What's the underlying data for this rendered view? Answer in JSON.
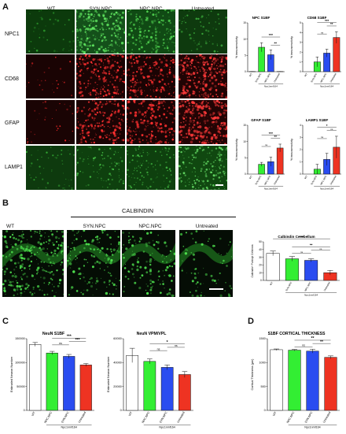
{
  "panel_a": {
    "letter": "A",
    "columns": [
      "WT",
      "SYN.NPC",
      "NPC.NPC",
      "Untreated"
    ],
    "rows": [
      "NPC1",
      "CD68",
      "GFAP",
      "LAMP1"
    ]
  },
  "panel_b": {
    "letter": "B",
    "stain": "CALBINDIN",
    "columns": [
      "WT",
      "SYN.NPC",
      "NPC.NPC",
      "Untreated"
    ]
  },
  "panel_c": {
    "letter": "C"
  },
  "panel_d": {
    "letter": "D"
  },
  "colors": {
    "wt": "#ffffff",
    "syn_npc": "#33ee33",
    "npc_npc": "#2a4cf0",
    "untreated": "#ee3322"
  },
  "chart_data": [
    {
      "id": "npc-s1bf",
      "type": "bar",
      "title": "NPC S1BF",
      "ylabel": "% immunoreactivity",
      "xgroup": "Npc1nmf164",
      "categories": [
        "WT",
        "SYN.NPC",
        "NPC.NPC",
        "Untreated"
      ],
      "values": [
        0.05,
        7.5,
        5.2,
        0.05
      ],
      "errors": [
        0.02,
        1.4,
        1.5,
        0.02
      ],
      "ylim": [
        0,
        15
      ],
      "yticks": [
        0,
        5,
        10,
        15
      ],
      "colors": [
        "#ffffff",
        "#33ee33",
        "#2a4cf0",
        "#ee3322"
      ],
      "significance": [
        [
          "***",
          1,
          3
        ],
        [
          "**",
          2,
          3
        ]
      ]
    },
    {
      "id": "cd68-s1bf",
      "type": "bar",
      "title": "CD68 S1BF",
      "ylabel": "% immunoreactivity",
      "xgroup": "Npc1nmf164",
      "categories": [
        "WT",
        "SYN.NPC",
        "NPC.NPC",
        "Untreated"
      ],
      "values": [
        0.0,
        1.0,
        1.9,
        3.5
      ],
      "errors": [
        0.0,
        0.5,
        0.4,
        0.6
      ],
      "ylim": [
        0,
        5
      ],
      "yticks": [
        0,
        1,
        2,
        3,
        4,
        5
      ],
      "colors": [
        "#ffffff",
        "#33ee33",
        "#2a4cf0",
        "#ee3322"
      ],
      "significance": [
        [
          "***",
          1,
          3
        ],
        [
          "ns",
          1,
          2
        ],
        [
          "**",
          2,
          3
        ]
      ]
    },
    {
      "id": "gfap-s1bf",
      "type": "bar",
      "title": "GFAP S1BF",
      "ylabel": "% immunoreactivity",
      "xgroup": "Npc1nmf164",
      "categories": [
        "WT",
        "SYN.NPC",
        "NPC.NPC",
        "Untreated"
      ],
      "values": [
        0.0,
        3.0,
        3.8,
        8.0
      ],
      "errors": [
        0.0,
        0.6,
        1.4,
        1.2
      ],
      "ylim": [
        0,
        15
      ],
      "yticks": [
        0,
        5,
        10,
        15
      ],
      "colors": [
        "#ffffff",
        "#33ee33",
        "#2a4cf0",
        "#ee3322"
      ],
      "significance": [
        [
          "***",
          1,
          3
        ],
        [
          "ns",
          1,
          2
        ],
        [
          "**",
          2,
          3
        ]
      ]
    },
    {
      "id": "lamp1-s1bf",
      "type": "bar",
      "title": "LAMP1 S1BF",
      "ylabel": "% immunoreactivity",
      "xgroup": "Npc1nmf164",
      "categories": [
        "WT",
        "SYN.NPC",
        "NPC.NPC",
        "Untreated"
      ],
      "values": [
        0.0,
        0.4,
        1.2,
        2.2
      ],
      "errors": [
        0.0,
        0.4,
        0.5,
        0.9
      ],
      "ylim": [
        0,
        4
      ],
      "yticks": [
        0,
        1,
        2,
        3,
        4
      ],
      "colors": [
        "#ffffff",
        "#33ee33",
        "#2a4cf0",
        "#ee3322"
      ],
      "significance": [
        [
          "*",
          1,
          3
        ],
        [
          "ns",
          1,
          2
        ],
        [
          "ns",
          2,
          3
        ]
      ]
    },
    {
      "id": "calbindin-cerebellum",
      "type": "bar",
      "title": "Calbindin Cerebellum",
      "ylabel": "Calbindin+ Purkinje Cells/mm",
      "xgroup": "Npc1nmf164",
      "categories": [
        "WT",
        "SYN.NPC",
        "NPC.NPC",
        "Untreated"
      ],
      "values": [
        35,
        28,
        26,
        10
      ],
      "errors": [
        3,
        3,
        2,
        3
      ],
      "ylim": [
        0,
        50
      ],
      "yticks": [
        0,
        10,
        20,
        30,
        40,
        50
      ],
      "colors": [
        "#ffffff",
        "#33ee33",
        "#2a4cf0",
        "#ee3322"
      ],
      "significance": [
        [
          "***",
          0,
          3
        ],
        [
          "ns",
          1,
          2
        ],
        [
          "**",
          1,
          3
        ],
        [
          "ns",
          2,
          3
        ]
      ]
    },
    {
      "id": "neun-s1bf",
      "type": "bar",
      "title": "NeuN S1BF",
      "ylabel": "Estimated Neuron Number",
      "xgroup": "Npc1nmf164",
      "categories": [
        "WT",
        "NPC.NPC",
        "SYN.NPC",
        "Untreated"
      ],
      "values": [
        138000,
        120000,
        113000,
        95000
      ],
      "errors": [
        4000,
        3500,
        4000,
        3000
      ],
      "ylim": [
        0,
        150000
      ],
      "yticks": [
        0,
        50000,
        100000,
        150000
      ],
      "colors": [
        "#ffffff",
        "#33ee33",
        "#2a4cf0",
        "#ee3322"
      ],
      "significance": [
        [
          "***",
          1,
          3
        ],
        [
          "ns",
          1,
          2
        ],
        [
          "***",
          2,
          3
        ]
      ]
    },
    {
      "id": "neun-vpm-vpl",
      "type": "bar",
      "title": "NeuN VPM/VPL",
      "ylabel": "Estimated Neuron Number",
      "xgroup": "Npc1nmf164",
      "categories": [
        "WT",
        "NPC.NPC",
        "SYN.NPC",
        "Untreated"
      ],
      "values": [
        46000,
        41000,
        36000,
        30000
      ],
      "errors": [
        6000,
        2000,
        2000,
        2500
      ],
      "ylim": [
        0,
        60000
      ],
      "yticks": [
        0,
        20000,
        40000,
        60000
      ],
      "colors": [
        "#ffffff",
        "#33ee33",
        "#2a4cf0",
        "#ee3322"
      ],
      "significance": [
        [
          "*",
          1,
          3
        ],
        [
          "ns",
          1,
          2
        ],
        [
          "ns",
          2,
          3
        ]
      ]
    },
    {
      "id": "s1bf-cortical-thickness",
      "type": "bar",
      "title": "S1BF CORTICAL THICKNESS",
      "ylabel": "Cortical Thickness (µm)",
      "xgroup": "Npc1nmf164",
      "categories": [
        "WT",
        "NPC.NPC",
        "SYN.NPC",
        "Untreated"
      ],
      "values": [
        1270,
        1260,
        1240,
        1110
      ],
      "errors": [
        15,
        15,
        40,
        30
      ],
      "ylim": [
        0,
        1500
      ],
      "yticks": [
        0,
        500,
        1000,
        1500
      ],
      "colors": [
        "#ffffff",
        "#33ee33",
        "#2a4cf0",
        "#ee3322"
      ],
      "significance": [
        [
          "**",
          1,
          3
        ],
        [
          "ns",
          1,
          2
        ],
        [
          "**",
          2,
          3
        ]
      ]
    }
  ]
}
